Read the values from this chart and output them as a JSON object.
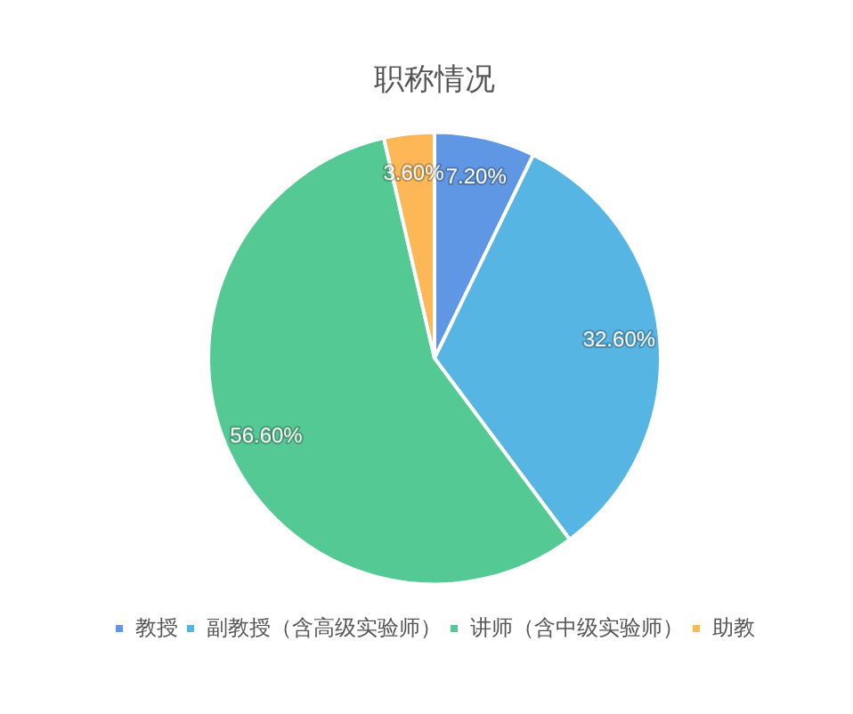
{
  "chart_data": {
    "type": "pie",
    "title": "职称情况",
    "categories": [
      "教授",
      "副教授（含高级实验师）",
      "讲师（含中级实验师）",
      "助教"
    ],
    "values": [
      7.2,
      32.6,
      56.6,
      3.6
    ],
    "colors": [
      "#5f97e5",
      "#57b5e3",
      "#54c994",
      "#fdb756"
    ],
    "value_labels": [
      "7.20%",
      "32.60%",
      "56.60%",
      "3.60%"
    ],
    "legend": "bottom"
  }
}
